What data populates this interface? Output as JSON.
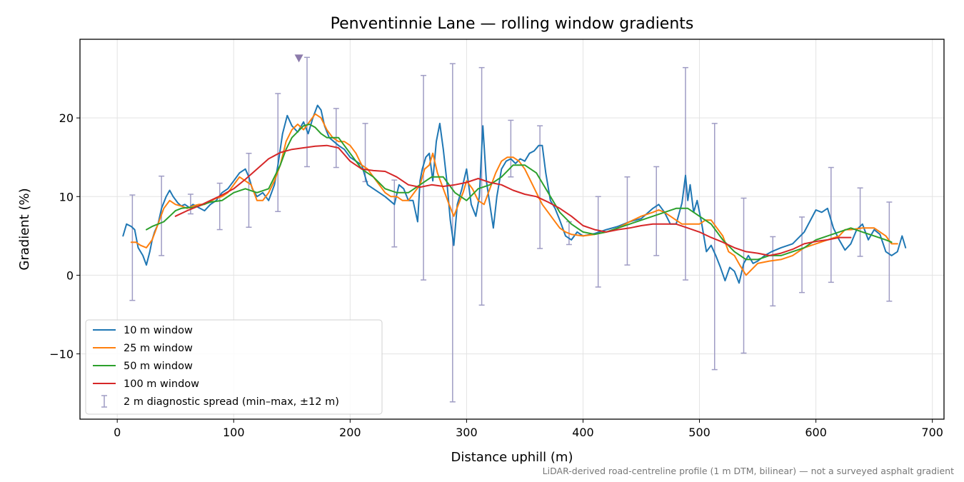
{
  "chart_data": {
    "type": "line",
    "title": "Penventinnie Lane — rolling window gradients",
    "xlabel": "Distance uphill (m)",
    "ylabel": "Gradient (%)",
    "footnote": "LiDAR-derived road-centreline profile (1 m DTM, bilinear) — not a surveyed asphalt gradient",
    "xlim": [
      -32,
      710
    ],
    "ylim": [
      -18.3,
      30.0
    ],
    "xticks": [
      0,
      100,
      200,
      300,
      400,
      500,
      600,
      700
    ],
    "xtick_labels": [
      "0",
      "100",
      "200",
      "300",
      "400",
      "500",
      "600",
      "700"
    ],
    "yticks": [
      -10,
      0,
      10,
      20
    ],
    "ytick_labels": [
      "−10",
      "0",
      "10",
      "20"
    ],
    "grid": true,
    "legend_position": "lower-left",
    "series": [
      {
        "name": "10 m window",
        "color": "#1f77b4",
        "x": [
          5,
          8,
          12,
          15,
          18,
          22,
          25,
          28,
          30,
          32,
          35,
          38,
          42,
          45,
          48,
          52,
          55,
          58,
          62,
          65,
          70,
          75,
          80,
          85,
          90,
          95,
          100,
          105,
          110,
          113,
          116,
          120,
          125,
          130,
          135,
          138,
          142,
          146,
          150,
          155,
          160,
          164,
          168,
          172,
          175,
          178,
          182,
          186,
          190,
          195,
          200,
          205,
          210,
          215,
          220,
          225,
          230,
          234,
          238,
          242,
          246,
          250,
          254,
          258,
          260,
          262,
          265,
          268,
          271,
          274,
          277,
          280,
          283,
          286,
          289,
          292,
          296,
          300,
          304,
          308,
          311,
          314,
          317,
          320,
          323,
          326,
          330,
          334,
          338,
          342,
          346,
          350,
          354,
          358,
          362,
          365,
          368,
          372,
          376,
          380,
          385,
          390,
          395,
          400,
          410,
          420,
          430,
          440,
          450,
          460,
          465,
          470,
          475,
          480,
          485,
          488,
          490,
          492,
          495,
          498,
          502,
          506,
          510,
          514,
          518,
          522,
          526,
          530,
          534,
          538,
          542,
          546,
          550,
          556,
          562,
          570,
          580,
          590,
          600,
          605,
          610,
          615,
          620,
          625,
          630,
          635,
          640,
          645,
          650,
          655,
          660,
          665,
          670,
          674,
          677
        ],
        "y": [
          5,
          6.5,
          6.2,
          5.8,
          3.5,
          2.5,
          1.3,
          3,
          4.5,
          5.5,
          6.5,
          8.5,
          10,
          10.8,
          10,
          9.2,
          8.8,
          9,
          8.6,
          9,
          8.6,
          8.2,
          9,
          9.5,
          10.5,
          11,
          12,
          13,
          13.5,
          12.5,
          11,
          10,
          10.5,
          9.5,
          11.5,
          14,
          18,
          20.3,
          19,
          18.2,
          19.5,
          18,
          20,
          21.6,
          21,
          19,
          17.5,
          17,
          16.5,
          16,
          15,
          14.5,
          14,
          11.5,
          11,
          10.5,
          10,
          9.5,
          9,
          11.5,
          11,
          9.5,
          9.5,
          6.8,
          12,
          13.5,
          15,
          15.5,
          12,
          17,
          19.3,
          16,
          12,
          7,
          3.8,
          9,
          11,
          13.5,
          9,
          7.5,
          10,
          19,
          12,
          9,
          6,
          10,
          13.5,
          14.5,
          14.8,
          14.2,
          14.8,
          14.5,
          15.5,
          15.8,
          16.5,
          16.5,
          13,
          9.5,
          8.5,
          7,
          5,
          4.5,
          5.5,
          5,
          5.3,
          5.8,
          6.2,
          6.8,
          7.2,
          8.5,
          9,
          8,
          6.5,
          6.5,
          9.2,
          12.7,
          9.5,
          11.5,
          8,
          9.5,
          6.5,
          3,
          3.8,
          2.5,
          1,
          -0.7,
          1,
          0.5,
          -1,
          1.5,
          2.5,
          1.5,
          1.8,
          2.5,
          3,
          3.5,
          4,
          5.5,
          8.3,
          8,
          8.5,
          6,
          4.5,
          3.2,
          4,
          5.8,
          6.5,
          4.5,
          5.8,
          5.2,
          3,
          2.5,
          3,
          5,
          3.5
        ]
      },
      {
        "name": "25 m window",
        "color": "#ff7f0e",
        "x": [
          12,
          16,
          20,
          25,
          30,
          35,
          40,
          45,
          50,
          55,
          60,
          65,
          70,
          75,
          80,
          85,
          90,
          95,
          100,
          105,
          110,
          115,
          120,
          125,
          130,
          135,
          140,
          145,
          150,
          155,
          160,
          165,
          170,
          175,
          180,
          185,
          190,
          195,
          200,
          205,
          210,
          215,
          220,
          225,
          230,
          235,
          240,
          245,
          250,
          255,
          260,
          264,
          268,
          271,
          275,
          280,
          285,
          289,
          293,
          297,
          300,
          305,
          310,
          315,
          320,
          325,
          330,
          335,
          340,
          345,
          350,
          355,
          360,
          365,
          370,
          375,
          380,
          385,
          390,
          400,
          410,
          420,
          430,
          440,
          450,
          460,
          465,
          470,
          475,
          480,
          485,
          490,
          495,
          500,
          505,
          510,
          515,
          520,
          525,
          530,
          535,
          540,
          550,
          560,
          570,
          580,
          590,
          600,
          610,
          620,
          625,
          630,
          640,
          650,
          660,
          665,
          670
        ],
        "y": [
          4.2,
          4.2,
          3.8,
          3.5,
          4.5,
          6.5,
          8.5,
          9.5,
          9,
          8.8,
          8.5,
          8.8,
          9,
          9,
          9.4,
          9.8,
          10,
          10.5,
          11.5,
          12.5,
          12,
          11.5,
          9.5,
          9.5,
          10.5,
          12,
          14,
          17,
          18.5,
          19.2,
          18.5,
          19.5,
          20.5,
          20,
          18.5,
          17.5,
          17,
          17,
          16.5,
          15.5,
          14,
          13.5,
          12.5,
          11.5,
          10.5,
          10,
          10,
          9.5,
          9.5,
          10.5,
          11.5,
          13.5,
          14,
          15.5,
          13,
          11,
          9,
          7.5,
          9,
          10.5,
          12,
          11,
          9.5,
          9,
          11,
          13,
          14.5,
          15,
          15,
          14.5,
          13.5,
          12,
          10.5,
          9,
          8,
          7,
          6,
          5.5,
          5.2,
          5,
          5.2,
          5.5,
          6,
          6.8,
          7.5,
          8,
          8.3,
          8,
          7.5,
          7,
          6.5,
          6.5,
          6.5,
          6.5,
          7,
          7,
          6,
          5,
          3,
          2.5,
          1.2,
          0,
          1.5,
          1.8,
          2,
          2.5,
          3.5,
          4,
          4.5,
          5,
          5.8,
          5.8,
          6,
          6,
          5,
          4,
          4
        ]
      },
      {
        "name": "50 m window",
        "color": "#2ca02c",
        "x": [
          25,
          30,
          35,
          40,
          45,
          50,
          55,
          60,
          65,
          70,
          80,
          90,
          100,
          110,
          120,
          130,
          140,
          145,
          150,
          160,
          165,
          170,
          175,
          180,
          190,
          200,
          210,
          220,
          230,
          240,
          250,
          260,
          270,
          280,
          290,
          300,
          310,
          320,
          330,
          340,
          350,
          360,
          370,
          380,
          390,
          400,
          410,
          420,
          430,
          440,
          450,
          460,
          470,
          480,
          490,
          495,
          500,
          510,
          520,
          530,
          540,
          550,
          560,
          570,
          580,
          590,
          600,
          610,
          620,
          630,
          640,
          650,
          660,
          665
        ],
        "y": [
          5.8,
          6.2,
          6.5,
          6.8,
          7.5,
          8.2,
          8.5,
          8.6,
          8.6,
          8.8,
          9.3,
          9.5,
          10.5,
          11,
          10.5,
          11,
          14,
          16,
          17.5,
          19,
          19.2,
          18.8,
          18,
          17.5,
          17.5,
          15.5,
          13.5,
          12.5,
          11,
          10.5,
          10.5,
          11.5,
          12.5,
          12.5,
          10.5,
          9.5,
          11,
          11.5,
          12.5,
          14,
          14,
          13,
          10.5,
          8,
          6.5,
          5.5,
          5.2,
          5.5,
          6,
          6.5,
          7,
          7.5,
          8,
          8.5,
          8.5,
          8,
          7.5,
          6.5,
          4.5,
          3,
          2,
          2,
          2.5,
          2.5,
          3,
          3.5,
          4.5,
          5,
          5.5,
          6,
          5.5,
          5,
          4.5,
          4.2
        ]
      },
      {
        "name": "100 m window",
        "color": "#d62728",
        "x": [
          50,
          60,
          70,
          80,
          90,
          100,
          110,
          120,
          130,
          140,
          150,
          160,
          170,
          180,
          190,
          200,
          210,
          220,
          230,
          240,
          250,
          260,
          270,
          280,
          290,
          300,
          310,
          320,
          330,
          340,
          350,
          360,
          370,
          380,
          390,
          400,
          410,
          420,
          430,
          440,
          450,
          460,
          470,
          480,
          490,
          500,
          510,
          520,
          530,
          540,
          550,
          560,
          570,
          580,
          590,
          600,
          610,
          620,
          630
        ],
        "y": [
          7.5,
          8.2,
          8.8,
          9.5,
          10.2,
          11,
          12.2,
          13.5,
          14.8,
          15.6,
          16,
          16.2,
          16.4,
          16.5,
          16.2,
          14.5,
          13.5,
          13.3,
          13.2,
          12.5,
          11.5,
          11.2,
          11.5,
          11.3,
          11.5,
          11.8,
          12.3,
          11.8,
          11.5,
          10.8,
          10.3,
          10,
          9.3,
          8.5,
          7.5,
          6.3,
          5.8,
          5.5,
          5.8,
          6,
          6.3,
          6.5,
          6.5,
          6.5,
          6,
          5.5,
          4.8,
          4.2,
          3.5,
          3,
          2.8,
          2.5,
          2.8,
          3.3,
          4,
          4.3,
          4.5,
          4.8,
          4.8
        ]
      }
    ],
    "error_bars": {
      "name": "2 m diagnostic spread (min–max, ±12 m)",
      "color": "#9f9cc4",
      "x": [
        13,
        38,
        63,
        88,
        113,
        138,
        163,
        188,
        213,
        238,
        263,
        288,
        313,
        338,
        363,
        388,
        413,
        438,
        463,
        488,
        513,
        538,
        563,
        588,
        613,
        638,
        663
      ],
      "ymin": [
        -3.2,
        2.5,
        7.8,
        5.8,
        6.1,
        8.1,
        13.8,
        13.7,
        11.9,
        3.6,
        -0.6,
        -16.1,
        -3.8,
        12.5,
        3.4,
        3.9,
        -1.5,
        1.3,
        2.5,
        -0.6,
        -12,
        -9.9,
        -3.9,
        -2.2,
        -0.9,
        2.4,
        -3.3
      ],
      "ymax": [
        10.2,
        12.6,
        10.3,
        11.7,
        15.5,
        23.1,
        27.7,
        21.2,
        19.3,
        12.1,
        25.4,
        26.9,
        26.4,
        19.7,
        19,
        6.8,
        10,
        12.5,
        13.8,
        26.4,
        19.3,
        9.8,
        4.9,
        7.4,
        13.7,
        11.1,
        9.3
      ]
    },
    "marker": {
      "x": 156,
      "y": 27.6,
      "color": "#8c7bab"
    }
  }
}
